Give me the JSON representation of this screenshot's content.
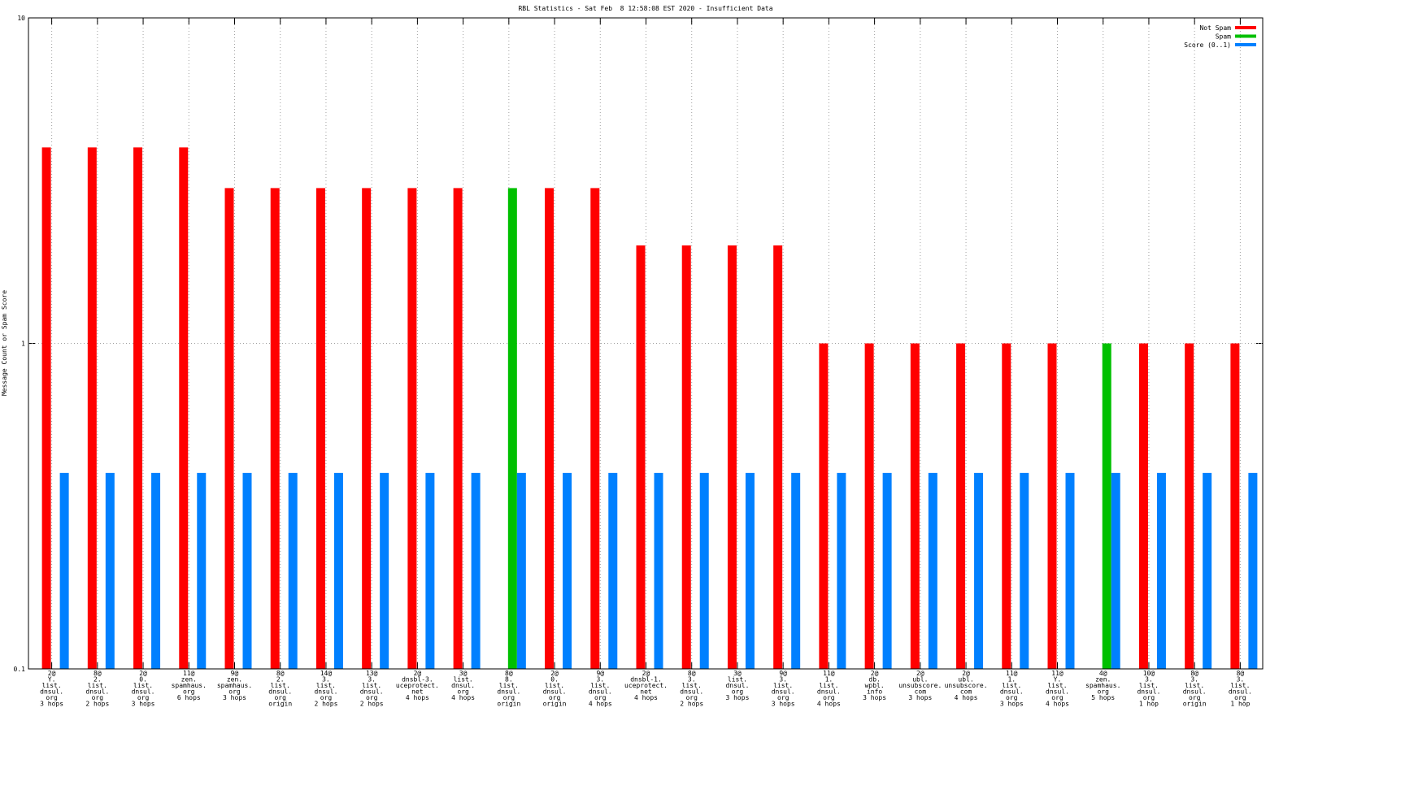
{
  "chart_data": {
    "type": "bar",
    "title": "RBL Statistics - Sat Feb  8 12:58:08 EST 2020 - Insufficient Data",
    "y_label": "Message Count or Spam Score",
    "log_y": true,
    "grid": true,
    "legend": "top-right",
    "ylim": [
      0.1,
      10
    ],
    "yticks": [
      0.1,
      1,
      10
    ],
    "categories": [
      [
        "2@",
        "Y.",
        "list.",
        "dnsul.",
        "org",
        "3 hops"
      ],
      [
        "8@",
        "2.",
        "list.",
        "dnsul.",
        "org",
        "2 hops"
      ],
      [
        "2@",
        "0.",
        "list.",
        "dnsul.",
        "org",
        "3 hops"
      ],
      [
        "11@",
        "zen.",
        "spamhaus.",
        "org",
        "6 hops"
      ],
      [
        "9@",
        "zen.",
        "spamhaus.",
        "org",
        "3 hops"
      ],
      [
        "8@",
        "2.",
        "list.",
        "dnsul.",
        "org",
        "origin"
      ],
      [
        "14@",
        "3.",
        "list.",
        "dnsul.",
        "org",
        "2 hops"
      ],
      [
        "13@",
        "3.",
        "list.",
        "dnsul.",
        "org",
        "2 hops"
      ],
      [
        "2@",
        "dnsbl-3.",
        "uceprotect.",
        "net",
        "4 hops"
      ],
      [
        "3@",
        "list.",
        "dnsul.",
        "org",
        "4 hops"
      ],
      [
        "8@",
        "8.",
        "list.",
        "dnsul.",
        "org",
        "origin"
      ],
      [
        "2@",
        "0.",
        "list.",
        "dnsul.",
        "org",
        "origin"
      ],
      [
        "9@",
        "3.",
        "list.",
        "dnsul.",
        "org",
        "4 hops"
      ],
      [
        "2@",
        "dnsbl-1.",
        "uceprotect.",
        "net",
        "4 hops"
      ],
      [
        "8@",
        "3.",
        "list.",
        "dnsul.",
        "org",
        "2 hops"
      ],
      [
        "3@",
        "list.",
        "dnsul.",
        "org",
        "3 hops"
      ],
      [
        "9@",
        "3.",
        "list.",
        "dnsul.",
        "org",
        "3 hops"
      ],
      [
        "11@",
        "1.",
        "list.",
        "dnsul.",
        "org",
        "4 hops"
      ],
      [
        "2@",
        "db.",
        "wpbl.",
        "info",
        "3 hops"
      ],
      [
        "2@",
        "ubl.",
        "unsubscore.",
        "com",
        "3 hops"
      ],
      [
        "2@",
        "ubl.",
        "unsubscore.",
        "com",
        "4 hops"
      ],
      [
        "11@",
        "1.",
        "list.",
        "dnsul.",
        "org",
        "3 hops"
      ],
      [
        "11@",
        "Y.",
        "list.",
        "dnsul.",
        "org",
        "4 hops"
      ],
      [
        "4@",
        "zen.",
        "spamhaus.",
        "org",
        "5 hops"
      ],
      [
        "10@",
        "3.",
        "list.",
        "dnsul.",
        "org",
        "1 hop"
      ],
      [
        "8@",
        "3.",
        "list.",
        "dnsul.",
        "org",
        "origin"
      ],
      [
        "8@",
        "3.",
        "list.",
        "dnsul.",
        "org",
        "1 hop"
      ]
    ],
    "series": [
      {
        "name": "Not Spam",
        "color": "#ff0000",
        "values": [
          4,
          4,
          4,
          4,
          3,
          3,
          3,
          3,
          3,
          3,
          null,
          3,
          3,
          2,
          2,
          2,
          2,
          1,
          1,
          1,
          1,
          1,
          1,
          null,
          1,
          1,
          1
        ]
      },
      {
        "name": "Spam",
        "color": "#00c000",
        "values": [
          null,
          null,
          null,
          null,
          null,
          null,
          null,
          null,
          null,
          null,
          3,
          null,
          null,
          null,
          null,
          null,
          null,
          null,
          null,
          null,
          null,
          null,
          null,
          1,
          null,
          null,
          null
        ]
      },
      {
        "name": "Score (0..1)",
        "color": "#0080ff",
        "values": [
          0.4,
          0.4,
          0.4,
          0.4,
          0.4,
          0.4,
          0.4,
          0.4,
          0.4,
          0.4,
          0.4,
          0.4,
          0.4,
          0.4,
          0.4,
          0.4,
          0.4,
          0.4,
          0.4,
          0.4,
          0.4,
          0.4,
          0.4,
          0.4,
          0.4,
          0.4,
          0.4
        ]
      }
    ]
  }
}
